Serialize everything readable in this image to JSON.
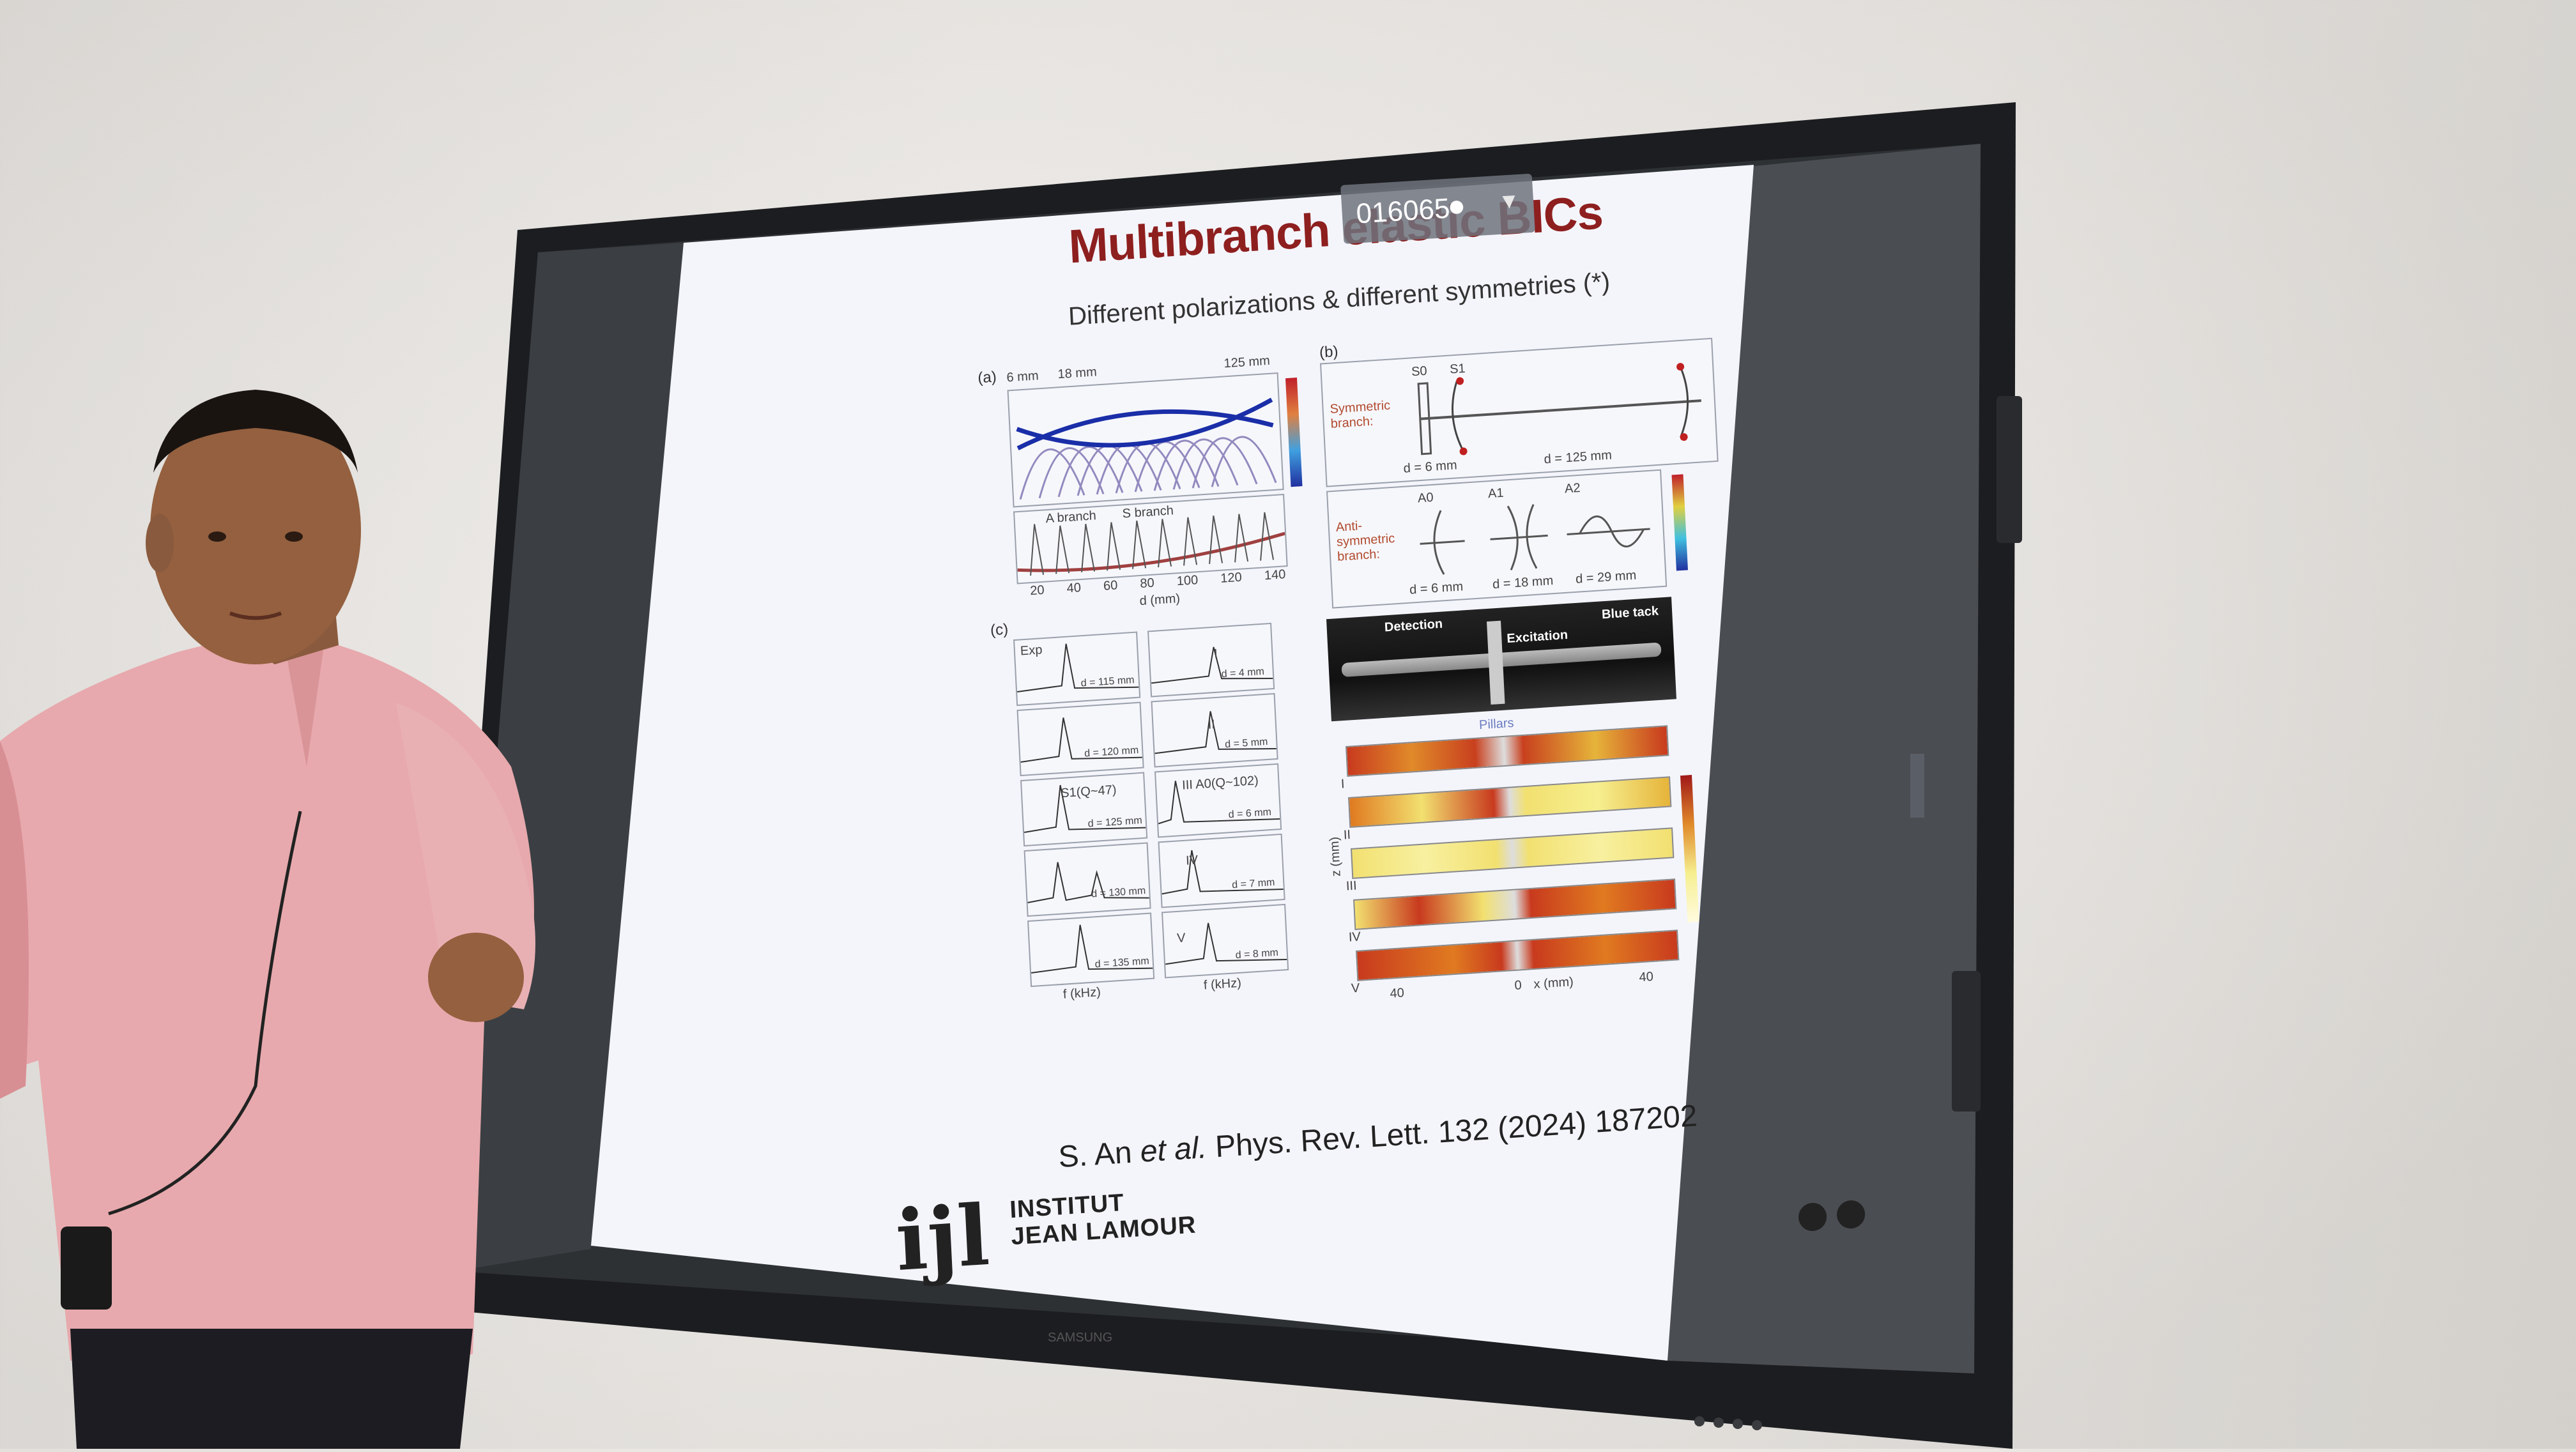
{
  "slide": {
    "title": "Multibranch elastic BICs",
    "subtitle": "Different polarizations & different symmetries (*)",
    "citation_prefix": "S. An",
    "citation_etal": "et al.",
    "citation_suffix": "Phys. Rev. Lett. 132 (2024) 187202",
    "panel_a_label": "(a)",
    "panel_b_label": "(b)",
    "panel_c_label": "(c)",
    "panel_a_top_labels": [
      "6 mm",
      "18 mm",
      "125 mm"
    ],
    "panel_a_x_label": "d (mm)",
    "panel_a_ticks": [
      "20",
      "40",
      "60",
      "80",
      "100",
      "120",
      "140"
    ],
    "panel_a_legend": [
      "A branch",
      "S branch"
    ],
    "panel_b_symmetric": "Symmetric branch:",
    "panel_b_antisymmetric": "Anti-symmetric branch:",
    "panel_b_sym_d": [
      "d = 6 mm",
      "d = 125 mm"
    ],
    "panel_b_anti_d": [
      "d = 6 mm",
      "d = 18 mm",
      "d = 29 mm"
    ],
    "panel_b_modes": [
      "S0",
      "S1",
      "A0",
      "A1",
      "A2"
    ],
    "photo_labels": [
      "Detection",
      "Excitation",
      "Blue tack"
    ],
    "pillars_label": "Pillars",
    "panel_c_left": [
      {
        "tag": "Exp",
        "d": "d = 115 mm"
      },
      {
        "tag": "",
        "d": "d = 120 mm"
      },
      {
        "tag": "S1(Q~47)",
        "d": "d = 125 mm"
      },
      {
        "tag": "",
        "d": "d = 130 mm"
      },
      {
        "tag": "",
        "d": "d = 135 mm"
      }
    ],
    "panel_c_right": [
      {
        "tag": "I",
        "d": "d = 4 mm"
      },
      {
        "tag": "II",
        "d": "d = 5 mm"
      },
      {
        "tag": "III  A0(Q~102)",
        "d": "d = 6 mm"
      },
      {
        "tag": "IV",
        "d": "d = 7 mm"
      },
      {
        "tag": "V",
        "d": "d = 8 mm"
      }
    ],
    "panel_c_x_label": "f (kHz)",
    "heatmap_row_labels": [
      "I",
      "II",
      "III",
      "IV",
      "V"
    ],
    "heatmap_x_label": "x (mm)",
    "heatmap_z_label": "z (mm)",
    "heatmap_ticks": [
      "40",
      "0",
      "40"
    ]
  },
  "logo": {
    "mark": "ijl",
    "line1": "INSTITUT",
    "line2": "JEAN LAMOUR"
  },
  "badge": {
    "number": "016065",
    "user_icon": "person-icon",
    "caret_icon": "chevron-down-icon"
  },
  "tv_brand": "SAMSUNG",
  "colors": {
    "title": "#8e1f1f",
    "badge_bg": "#6e737d",
    "shirt": "#e7a9ad",
    "tv_bezel": "#1c1d20"
  }
}
